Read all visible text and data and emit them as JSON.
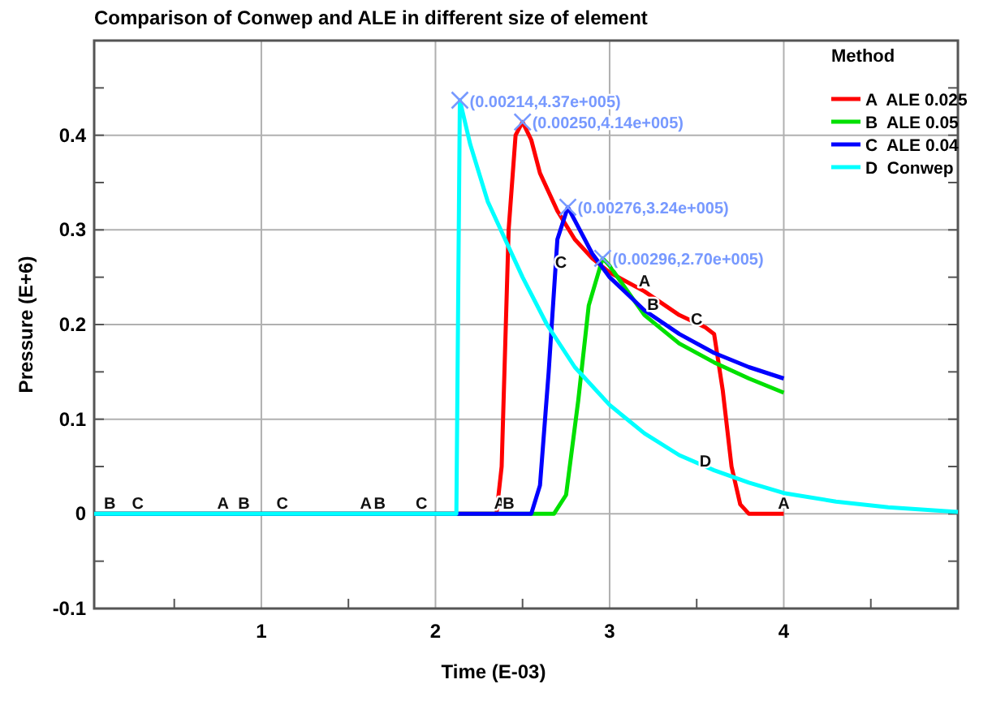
{
  "chart_data": {
    "type": "line",
    "title": "Comparison of Conwep and ALE in different size of element",
    "xlabel": "Time (E-03)",
    "ylabel": "Pressure (E+6)",
    "legend_title": "Method",
    "legend": "right",
    "grid": true,
    "marker": "none",
    "line_style": "solid",
    "xlim": [
      0.04,
      5.0
    ],
    "ylim": [
      -0.1,
      0.5
    ],
    "xticks": [
      {
        "value": 0.5,
        "label": null
      },
      1,
      {
        "value": 1.5,
        "label": null
      },
      2,
      {
        "value": 2.5,
        "label": null
      },
      3,
      {
        "value": 3.5,
        "label": null
      },
      4,
      {
        "value": 4.5,
        "label": null
      }
    ],
    "yticks": [
      -0.1,
      {
        "value": -0.05,
        "label": null
      },
      0,
      {
        "value": 0.05,
        "label": null
      },
      0.1,
      {
        "value": 0.15,
        "label": null
      },
      0.2,
      {
        "value": 0.25,
        "label": null
      },
      0.3,
      {
        "value": 0.35,
        "label": null
      },
      0.4,
      {
        "value": 0.45,
        "label": null
      }
    ],
    "series": [
      {
        "name": "A  ALE 0.025",
        "color": "#ff0000",
        "x": [
          0.04,
          2.35,
          2.38,
          2.42,
          2.46,
          2.5,
          2.55,
          2.6,
          2.7,
          2.8,
          2.9,
          3.0,
          3.2,
          3.4,
          3.55,
          3.6,
          3.65,
          3.7,
          3.75,
          3.8,
          4.0
        ],
        "values": [
          0,
          0,
          0.05,
          0.3,
          0.4,
          0.414,
          0.395,
          0.36,
          0.32,
          0.29,
          0.27,
          0.255,
          0.235,
          0.21,
          0.197,
          0.19,
          0.13,
          0.05,
          0.01,
          0,
          0
        ]
      },
      {
        "name": "B  ALE 0.05",
        "color": "#00e000",
        "x": [
          0.04,
          2.68,
          2.75,
          2.82,
          2.88,
          2.96,
          3.0,
          3.2,
          3.4,
          3.6,
          3.8,
          4.0
        ],
        "values": [
          0,
          0,
          0.02,
          0.12,
          0.22,
          0.27,
          0.262,
          0.21,
          0.18,
          0.16,
          0.143,
          0.128
        ]
      },
      {
        "name": "C  ALE 0.04",
        "color": "#0000ff",
        "x": [
          0.04,
          2.55,
          2.6,
          2.65,
          2.7,
          2.76,
          2.8,
          2.9,
          3.0,
          3.2,
          3.4,
          3.6,
          3.8,
          4.0
        ],
        "values": [
          0,
          0,
          0.03,
          0.15,
          0.29,
          0.324,
          0.31,
          0.275,
          0.25,
          0.215,
          0.19,
          0.17,
          0.155,
          0.143
        ]
      },
      {
        "name": "D  Conwep",
        "color": "#00ffff",
        "x": [
          0.04,
          2.12,
          2.14,
          2.2,
          2.3,
          2.4,
          2.5,
          2.64,
          2.8,
          3.0,
          3.2,
          3.4,
          3.6,
          3.8,
          4.0,
          4.3,
          4.6,
          5.0
        ],
        "values": [
          0,
          0,
          0.437,
          0.39,
          0.33,
          0.29,
          0.25,
          0.2,
          0.155,
          0.115,
          0.085,
          0.062,
          0.046,
          0.033,
          0.022,
          0.013,
          0.007,
          0.002
        ]
      },
      {
        "type": "scatter",
        "marker": "cross",
        "color": "#7799ff",
        "x": [
          2.14,
          2.5,
          2.76,
          2.96
        ],
        "values": [
          0.437,
          0.414,
          0.324,
          0.27
        ]
      }
    ],
    "annotations": [
      {
        "text": "(0.00214,4.37e+005)",
        "x": 2.14,
        "y": 0.437
      },
      {
        "text": "(0.00250,4.14e+005)",
        "x": 2.5,
        "y": 0.414
      },
      {
        "text": "(0.00276,3.24e+005)",
        "x": 2.76,
        "y": 0.324
      },
      {
        "text": "(0.00296,2.70e+005)",
        "x": 2.96,
        "y": 0.27
      },
      {
        "text": "B",
        "x": 0.13,
        "y": 0
      },
      {
        "text": "C",
        "x": 0.29,
        "y": 0
      },
      {
        "text": "A",
        "x": 0.78,
        "y": 0
      },
      {
        "text": "B",
        "x": 0.9,
        "y": 0
      },
      {
        "text": "C",
        "x": 1.12,
        "y": 0
      },
      {
        "text": "A",
        "x": 1.6,
        "y": 0
      },
      {
        "text": "B",
        "x": 1.68,
        "y": 0
      },
      {
        "text": "C",
        "x": 1.92,
        "y": 0
      },
      {
        "text": "A",
        "x": 2.37,
        "y": 0
      },
      {
        "text": "B",
        "x": 2.42,
        "y": 0
      },
      {
        "text": "A",
        "x": 4.0,
        "y": 0
      },
      {
        "text": "C",
        "x": 2.72,
        "y": 0.255
      },
      {
        "text": "A",
        "x": 3.2,
        "y": 0.235
      },
      {
        "text": "B",
        "x": 3.25,
        "y": 0.21
      },
      {
        "text": "C",
        "x": 3.5,
        "y": 0.195
      },
      {
        "text": "D",
        "x": 3.55,
        "y": 0.045
      }
    ]
  }
}
